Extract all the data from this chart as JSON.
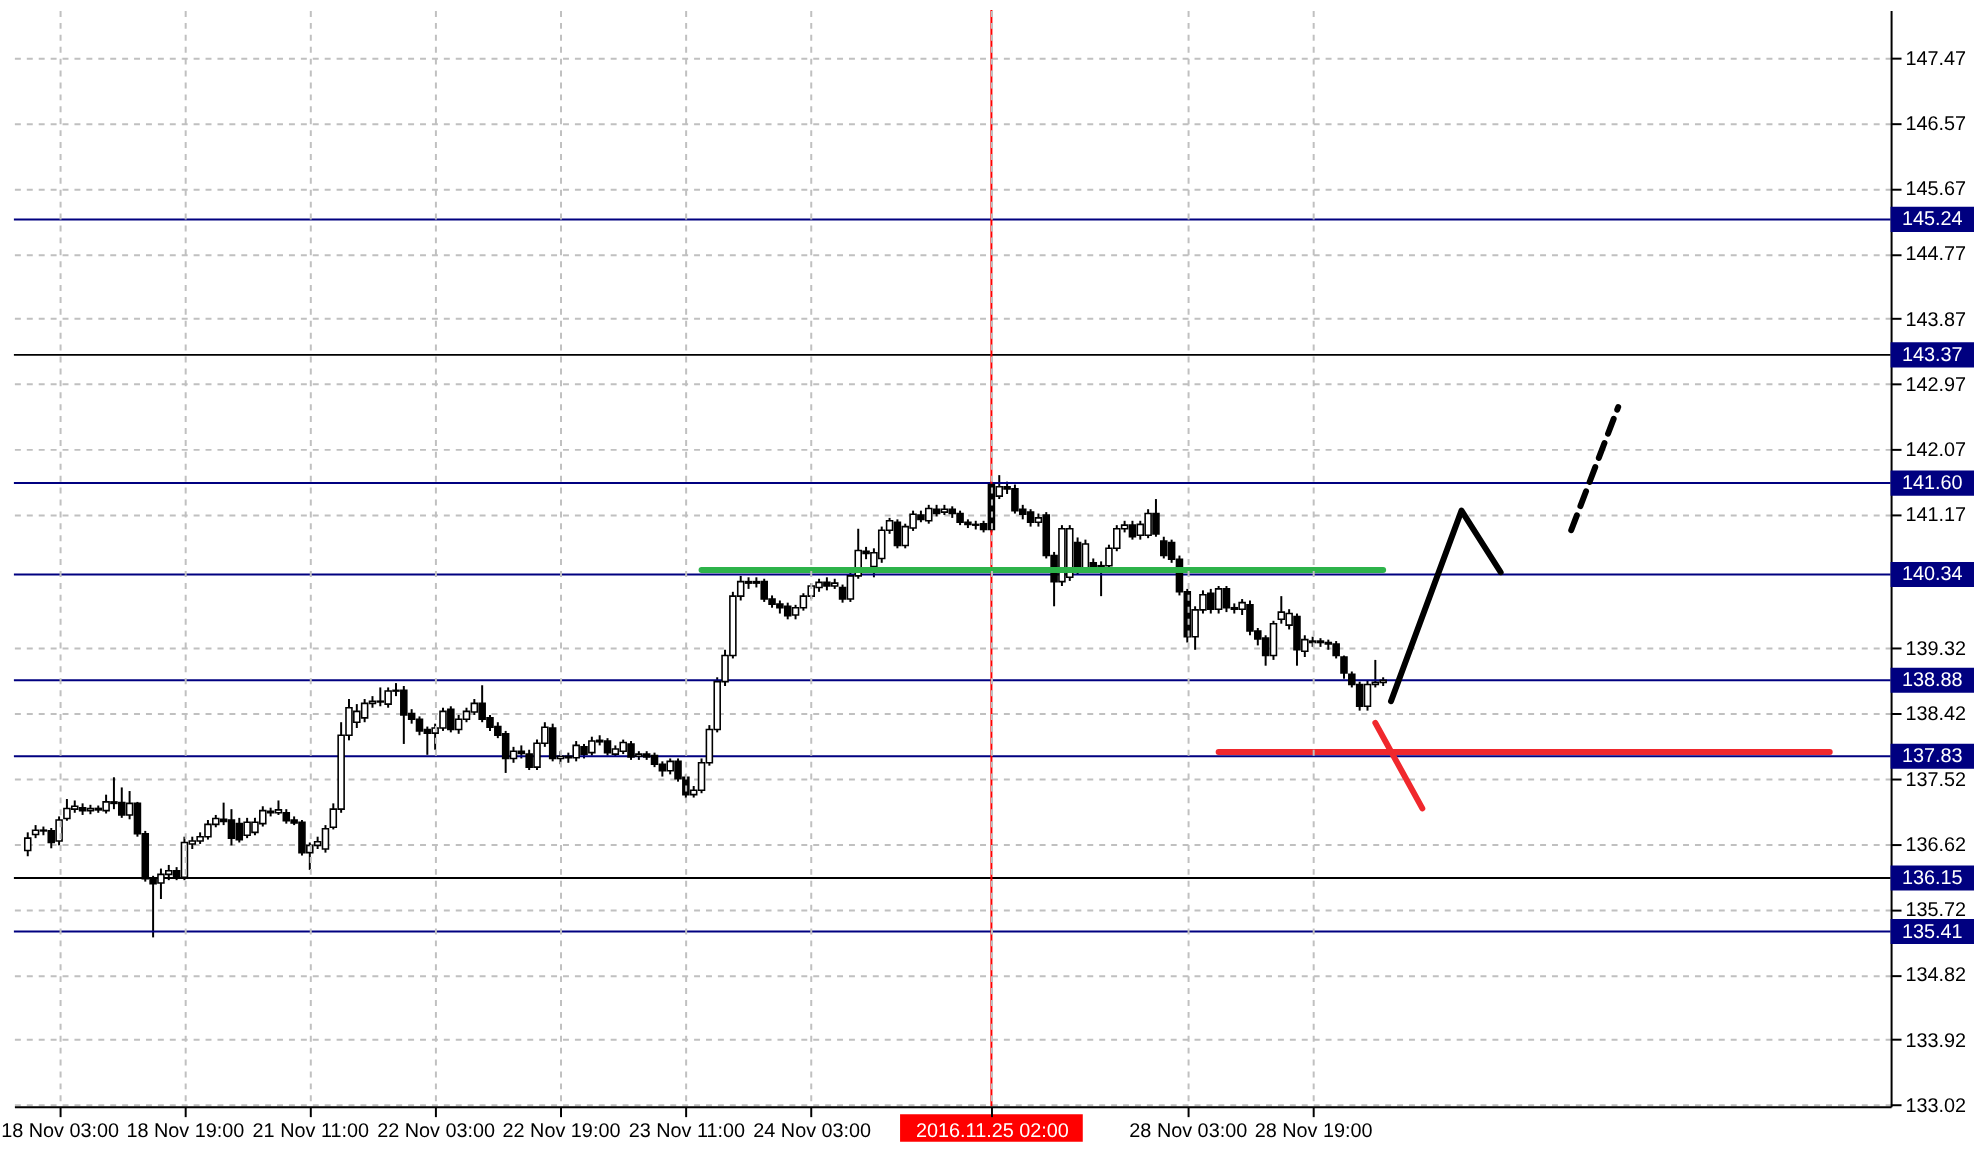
{
  "chart_data": {
    "type": "candlestick",
    "categories": [
      null,
      null,
      null,
      null,
      "18 Nov 03:00",
      null,
      null,
      null,
      null,
      null,
      null,
      null,
      null,
      null,
      null,
      null,
      null,
      null,
      null,
      null,
      "18 Nov 19:00",
      null,
      null,
      null,
      null,
      null,
      null,
      null,
      null,
      null,
      null,
      null,
      null,
      null,
      null,
      null,
      "21 Nov 11:00",
      null,
      null,
      null,
      null,
      null,
      null,
      null,
      null,
      null,
      null,
      null,
      null,
      null,
      null,
      null,
      "22 Nov 03:00",
      null,
      null,
      null,
      null,
      null,
      null,
      null,
      null,
      null,
      null,
      null,
      null,
      null,
      null,
      null,
      "22 Nov 19:00",
      null,
      null,
      null,
      null,
      null,
      null,
      null,
      null,
      null,
      null,
      null,
      null,
      null,
      null,
      null,
      "23 Nov 11:00",
      null,
      null,
      null,
      null,
      null,
      null,
      null,
      null,
      null,
      null,
      null,
      null,
      null,
      null,
      null,
      "24 Nov 03:00",
      null,
      null,
      null,
      null,
      null,
      null,
      null,
      null,
      null,
      null,
      null,
      null,
      null,
      null,
      null,
      null,
      null,
      null,
      null,
      null,
      null,
      null,
      "2016.11.25 02:00",
      null,
      null,
      null,
      null,
      null,
      null,
      null,
      null,
      null,
      null,
      null,
      null,
      null,
      null,
      null,
      null,
      null,
      null,
      null,
      null,
      null,
      null,
      null,
      null,
      "28 Nov 03:00",
      null,
      null,
      null,
      null,
      null,
      null,
      null,
      null,
      null,
      null,
      null,
      null,
      null,
      null,
      null,
      "28 Nov 19:00",
      null,
      null,
      null,
      null,
      null,
      null,
      null,
      null,
      null,
      null,
      null,
      null,
      null,
      null,
      null,
      null,
      null,
      null,
      null,
      null,
      null,
      null,
      null,
      null,
      null,
      null,
      null,
      null,
      null,
      null,
      null,
      null,
      null,
      null,
      null,
      null,
      null,
      null,
      null,
      null,
      null,
      null,
      null,
      null,
      null,
      null,
      null,
      null,
      null,
      null,
      null,
      null,
      null,
      null,
      null,
      null,
      null,
      null,
      null,
      null,
      null,
      null,
      null,
      null,
      null,
      null,
      null,
      null,
      null,
      null,
      null,
      null
    ],
    "ohlc": [
      [
        136.53,
        136.78,
        136.45,
        136.7
      ],
      [
        136.75,
        136.88,
        136.7,
        136.81
      ],
      [
        136.81,
        136.86,
        136.74,
        136.8
      ],
      [
        136.8,
        136.84,
        136.56,
        136.64
      ],
      [
        136.66,
        137.0,
        136.6,
        136.95
      ],
      [
        136.97,
        137.24,
        136.94,
        137.11
      ],
      [
        137.1,
        137.22,
        137.05,
        137.14
      ],
      [
        137.12,
        137.18,
        137.02,
        137.08
      ],
      [
        137.08,
        137.16,
        137.03,
        137.11
      ],
      [
        137.11,
        137.15,
        137.05,
        137.09
      ],
      [
        137.08,
        137.3,
        137.04,
        137.2
      ],
      [
        137.2,
        137.54,
        137.1,
        137.18
      ],
      [
        137.19,
        137.4,
        136.98,
        137.02
      ],
      [
        137.02,
        137.35,
        136.96,
        137.18
      ],
      [
        137.18,
        137.2,
        136.72,
        136.76
      ],
      [
        136.76,
        136.8,
        136.1,
        136.14
      ],
      [
        136.14,
        136.18,
        135.33,
        136.07
      ],
      [
        136.08,
        136.28,
        135.86,
        136.2
      ],
      [
        136.2,
        136.33,
        136.12,
        136.25
      ],
      [
        136.25,
        136.3,
        136.12,
        136.16
      ],
      [
        136.16,
        136.72,
        136.12,
        136.64
      ],
      [
        136.62,
        136.72,
        136.55,
        136.66
      ],
      [
        136.66,
        136.78,
        136.62,
        136.72
      ],
      [
        136.72,
        136.95,
        136.68,
        136.89
      ],
      [
        136.89,
        137.02,
        136.85,
        136.97
      ],
      [
        136.96,
        137.19,
        136.88,
        136.93
      ],
      [
        136.95,
        137.1,
        136.6,
        136.7
      ],
      [
        136.9,
        136.98,
        136.64,
        136.68
      ],
      [
        136.74,
        136.98,
        136.7,
        136.92
      ],
      [
        136.78,
        136.98,
        136.74,
        136.92
      ],
      [
        136.9,
        137.14,
        136.86,
        137.08
      ],
      [
        137.07,
        137.12,
        137.0,
        137.05
      ],
      [
        137.05,
        137.22,
        137.02,
        137.09
      ],
      [
        137.05,
        137.1,
        136.9,
        136.94
      ],
      [
        136.95,
        137.0,
        136.88,
        136.91
      ],
      [
        136.92,
        136.95,
        136.46,
        136.5
      ],
      [
        136.5,
        136.64,
        136.26,
        136.6
      ],
      [
        136.6,
        136.72,
        136.55,
        136.65
      ],
      [
        136.55,
        136.88,
        136.5,
        136.83
      ],
      [
        136.85,
        137.18,
        136.82,
        137.1
      ],
      [
        137.1,
        138.3,
        137.05,
        138.12
      ],
      [
        138.12,
        138.62,
        138.05,
        138.5
      ],
      [
        138.3,
        138.55,
        138.22,
        138.45
      ],
      [
        138.36,
        138.62,
        138.3,
        138.56
      ],
      [
        138.56,
        138.66,
        138.5,
        138.59
      ],
      [
        138.59,
        138.78,
        138.52,
        138.58
      ],
      [
        138.55,
        138.78,
        138.5,
        138.73
      ],
      [
        138.73,
        138.84,
        138.66,
        138.74
      ],
      [
        138.74,
        138.8,
        138.0,
        138.4
      ],
      [
        138.42,
        138.48,
        138.28,
        138.34
      ],
      [
        138.34,
        138.38,
        138.12,
        138.18
      ],
      [
        138.2,
        138.24,
        137.85,
        138.15
      ],
      [
        138.15,
        138.28,
        137.92,
        138.22
      ],
      [
        138.22,
        138.5,
        138.18,
        138.45
      ],
      [
        138.48,
        138.52,
        138.16,
        138.2
      ],
      [
        138.2,
        138.4,
        138.14,
        138.34
      ],
      [
        138.34,
        138.5,
        138.3,
        138.45
      ],
      [
        138.44,
        138.62,
        138.4,
        138.56
      ],
      [
        138.56,
        138.81,
        138.3,
        138.34
      ],
      [
        138.36,
        138.4,
        138.18,
        138.23
      ],
      [
        138.24,
        138.3,
        138.08,
        138.12
      ],
      [
        138.14,
        138.18,
        137.6,
        137.8
      ],
      [
        137.8,
        137.96,
        137.74,
        137.9
      ],
      [
        137.9,
        137.98,
        137.8,
        137.87
      ],
      [
        137.86,
        137.92,
        137.64,
        137.68
      ],
      [
        137.68,
        138.06,
        137.64,
        138.01
      ],
      [
        138.01,
        138.3,
        137.96,
        138.23
      ],
      [
        138.22,
        138.28,
        137.76,
        137.8
      ],
      [
        137.8,
        137.9,
        137.72,
        137.83
      ],
      [
        137.83,
        137.88,
        137.74,
        137.81
      ],
      [
        137.81,
        138.04,
        137.76,
        137.98
      ],
      [
        137.96,
        138.0,
        137.8,
        137.86
      ],
      [
        137.88,
        138.1,
        137.84,
        138.04
      ],
      [
        138.03,
        138.12,
        137.98,
        138.05
      ],
      [
        138.04,
        138.08,
        137.84,
        137.88
      ],
      [
        137.86,
        137.98,
        137.82,
        137.93
      ],
      [
        137.9,
        138.06,
        137.86,
        138.02
      ],
      [
        138.0,
        138.04,
        137.78,
        137.82
      ],
      [
        137.83,
        137.9,
        137.78,
        137.86
      ],
      [
        137.86,
        137.9,
        137.78,
        137.82
      ],
      [
        137.84,
        137.88,
        137.68,
        137.72
      ],
      [
        137.72,
        137.76,
        137.55,
        137.63
      ],
      [
        137.63,
        137.8,
        137.58,
        137.76
      ],
      [
        137.76,
        137.8,
        137.48,
        137.52
      ],
      [
        137.54,
        137.58,
        137.25,
        137.3
      ],
      [
        137.3,
        137.42,
        137.26,
        137.36
      ],
      [
        137.36,
        137.8,
        137.32,
        137.74
      ],
      [
        137.74,
        138.26,
        137.7,
        138.2
      ],
      [
        138.2,
        138.92,
        138.16,
        138.86
      ],
      [
        138.86,
        139.3,
        138.8,
        139.22
      ],
      [
        139.22,
        140.1,
        139.18,
        140.04
      ],
      [
        140.04,
        140.32,
        139.98,
        140.24
      ],
      [
        140.24,
        140.3,
        140.14,
        140.22
      ],
      [
        140.22,
        140.3,
        140.16,
        140.24
      ],
      [
        140.24,
        140.28,
        139.96,
        140.0
      ],
      [
        140.0,
        140.05,
        139.88,
        139.93
      ],
      [
        139.93,
        139.98,
        139.8,
        139.88
      ],
      [
        139.9,
        139.95,
        139.72,
        139.77
      ],
      [
        139.78,
        139.92,
        139.72,
        139.88
      ],
      [
        139.88,
        140.08,
        139.84,
        140.04
      ],
      [
        140.04,
        140.22,
        140.0,
        140.18
      ],
      [
        140.16,
        140.28,
        140.1,
        140.23
      ],
      [
        140.23,
        140.3,
        140.12,
        140.18
      ],
      [
        140.18,
        140.28,
        140.14,
        140.22
      ],
      [
        140.16,
        140.2,
        139.95,
        140.0
      ],
      [
        140.0,
        140.36,
        139.96,
        140.32
      ],
      [
        140.32,
        140.97,
        140.28,
        140.67
      ],
      [
        140.66,
        140.72,
        140.55,
        140.63
      ],
      [
        140.45,
        140.7,
        140.3,
        140.64
      ],
      [
        140.56,
        141.0,
        140.5,
        140.95
      ],
      [
        140.95,
        141.12,
        140.9,
        141.08
      ],
      [
        141.06,
        141.1,
        140.7,
        140.74
      ],
      [
        140.74,
        141.04,
        140.7,
        141.0
      ],
      [
        140.98,
        141.22,
        140.94,
        141.17
      ],
      [
        141.16,
        141.22,
        141.06,
        141.1
      ],
      [
        141.08,
        141.3,
        141.04,
        141.25
      ],
      [
        141.24,
        141.3,
        141.14,
        141.18
      ],
      [
        141.2,
        141.3,
        141.16,
        141.24
      ],
      [
        141.24,
        141.28,
        141.12,
        141.18
      ],
      [
        141.18,
        141.22,
        141.02,
        141.06
      ],
      [
        141.06,
        141.1,
        140.98,
        141.03
      ],
      [
        141.03,
        141.08,
        140.96,
        141.02
      ],
      [
        141.04,
        141.08,
        140.92,
        140.96
      ],
      [
        141.58,
        141.62,
        140.92,
        140.96
      ],
      [
        141.42,
        141.71,
        141.38,
        141.55
      ],
      [
        141.55,
        141.62,
        141.45,
        141.52
      ],
      [
        141.52,
        141.58,
        141.18,
        141.22
      ],
      [
        141.24,
        141.3,
        141.1,
        141.17
      ],
      [
        141.2,
        141.24,
        141.0,
        141.06
      ],
      [
        141.06,
        141.18,
        141.0,
        141.12
      ],
      [
        141.16,
        141.2,
        140.56,
        140.6
      ],
      [
        140.6,
        140.65,
        139.9,
        140.24
      ],
      [
        140.24,
        141.02,
        140.18,
        140.97
      ],
      [
        140.3,
        141.02,
        140.25,
        140.97
      ],
      [
        140.78,
        140.85,
        140.34,
        140.4
      ],
      [
        140.4,
        140.82,
        140.36,
        140.76
      ],
      [
        140.5,
        140.56,
        140.38,
        140.43
      ],
      [
        140.44,
        140.52,
        140.04,
        140.46
      ],
      [
        140.46,
        140.75,
        140.4,
        140.7
      ],
      [
        140.7,
        141.02,
        140.66,
        140.97
      ],
      [
        140.97,
        141.08,
        140.92,
        141.02
      ],
      [
        141.02,
        141.08,
        140.82,
        140.86
      ],
      [
        140.88,
        141.08,
        140.82,
        141.03
      ],
      [
        140.88,
        141.24,
        140.84,
        141.18
      ],
      [
        141.18,
        141.38,
        140.86,
        140.9
      ],
      [
        140.8,
        140.86,
        140.56,
        140.6
      ],
      [
        140.78,
        140.82,
        140.5,
        140.55
      ],
      [
        140.55,
        140.6,
        140.05,
        140.1
      ],
      [
        140.1,
        140.14,
        139.4,
        139.48
      ],
      [
        139.48,
        139.9,
        139.3,
        139.85
      ],
      [
        139.85,
        140.12,
        139.8,
        140.06
      ],
      [
        140.08,
        140.14,
        139.8,
        139.86
      ],
      [
        139.86,
        140.18,
        139.8,
        140.14
      ],
      [
        140.14,
        140.18,
        139.82,
        139.88
      ],
      [
        139.88,
        139.94,
        139.8,
        139.86
      ],
      [
        139.86,
        140.0,
        139.78,
        139.95
      ],
      [
        139.92,
        139.98,
        139.5,
        139.56
      ],
      [
        139.56,
        139.6,
        139.36,
        139.45
      ],
      [
        139.46,
        139.5,
        139.08,
        139.22
      ],
      [
        139.22,
        139.7,
        139.16,
        139.66
      ],
      [
        139.72,
        140.04,
        139.66,
        139.82
      ],
      [
        139.64,
        139.86,
        139.58,
        139.8
      ],
      [
        139.76,
        139.8,
        139.08,
        139.3
      ],
      [
        139.28,
        139.5,
        139.2,
        139.44
      ],
      [
        139.42,
        139.48,
        139.34,
        139.4
      ],
      [
        139.4,
        139.46,
        139.34,
        139.42
      ],
      [
        139.4,
        139.44,
        139.3,
        139.38
      ],
      [
        139.38,
        139.42,
        139.18,
        139.22
      ],
      [
        139.2,
        139.22,
        138.9,
        138.98
      ],
      [
        138.96,
        139.0,
        138.78,
        138.82
      ],
      [
        138.82,
        138.86,
        138.46,
        138.52
      ],
      [
        138.52,
        138.88,
        138.46,
        138.82
      ],
      [
        138.82,
        139.16,
        138.78,
        138.85
      ],
      [
        138.85,
        138.92,
        138.8,
        138.88
      ],
      null,
      null,
      null,
      null,
      null,
      null,
      null,
      null,
      null,
      null,
      null,
      null,
      null,
      null,
      null,
      null,
      null,
      null,
      null,
      null,
      null,
      null,
      null,
      null,
      null,
      null,
      null,
      null,
      null,
      null,
      null,
      null,
      null,
      null,
      null,
      null,
      null,
      null,
      null,
      null,
      null,
      null,
      null,
      null,
      null,
      null,
      null,
      null,
      null,
      null,
      null,
      null,
      null,
      null,
      null,
      null,
      null,
      null,
      null,
      null,
      null,
      null,
      null
    ],
    "series": [
      {
        "type": "line",
        "color": "#2db34a",
        "line_style": "solid",
        "values": [
          null,
          null,
          null,
          null,
          null,
          null,
          null,
          null,
          null,
          null,
          null,
          null,
          null,
          null,
          null,
          null,
          null,
          null,
          null,
          null,
          null,
          null,
          null,
          null,
          null,
          null,
          null,
          null,
          null,
          null,
          null,
          null,
          null,
          null,
          null,
          null,
          null,
          null,
          null,
          null,
          null,
          null,
          null,
          null,
          null,
          null,
          null,
          null,
          null,
          null,
          null,
          null,
          null,
          null,
          null,
          null,
          null,
          null,
          null,
          null,
          null,
          null,
          null,
          null,
          null,
          null,
          null,
          null,
          null,
          null,
          null,
          null,
          null,
          null,
          null,
          null,
          null,
          null,
          null,
          null,
          null,
          null,
          null,
          null,
          null,
          null,
          140.4,
          null,
          null,
          null,
          null,
          null,
          null,
          null,
          null,
          null,
          null,
          null,
          null,
          null,
          null,
          null,
          null,
          null,
          null,
          null,
          null,
          null,
          null,
          null,
          null,
          null,
          null,
          null,
          null,
          null,
          null,
          null,
          null,
          null,
          null,
          null,
          null,
          null,
          null,
          null,
          null,
          null,
          null,
          null,
          null,
          null,
          null,
          null,
          null,
          null,
          null,
          null,
          null,
          null,
          null,
          null,
          null,
          null,
          null,
          null,
          null,
          null,
          null,
          null,
          null,
          null,
          null,
          null,
          null,
          null,
          null,
          null,
          null,
          null,
          null,
          null,
          null,
          null,
          null,
          null,
          null,
          null,
          null,
          null,
          null,
          null,
          null,
          140.4,
          null,
          null,
          null,
          null,
          null,
          null,
          null,
          null,
          null,
          null,
          null,
          null,
          null,
          null,
          null,
          null,
          null,
          null,
          null,
          null,
          null,
          null,
          null,
          null,
          null,
          null,
          null,
          null,
          null,
          null,
          null,
          null,
          null,
          null,
          null,
          null,
          null,
          null,
          null,
          null,
          null,
          null,
          null,
          null,
          null,
          null,
          null,
          null,
          null,
          null,
          null,
          null,
          null,
          null,
          null,
          null,
          null,
          null,
          null,
          null,
          null,
          null,
          null
        ]
      },
      {
        "type": "line",
        "color": "#f0282d",
        "line_style": "solid",
        "values": [
          null,
          null,
          null,
          null,
          null,
          null,
          null,
          null,
          null,
          null,
          null,
          null,
          null,
          null,
          null,
          null,
          null,
          null,
          null,
          null,
          null,
          null,
          null,
          null,
          null,
          null,
          null,
          null,
          null,
          null,
          null,
          null,
          null,
          null,
          null,
          null,
          null,
          null,
          null,
          null,
          null,
          null,
          null,
          null,
          null,
          null,
          null,
          null,
          null,
          null,
          null,
          null,
          null,
          null,
          null,
          null,
          null,
          null,
          null,
          null,
          null,
          null,
          null,
          null,
          null,
          null,
          null,
          null,
          null,
          null,
          null,
          null,
          null,
          null,
          null,
          null,
          null,
          null,
          null,
          null,
          null,
          null,
          null,
          null,
          null,
          null,
          null,
          null,
          null,
          null,
          null,
          null,
          null,
          null,
          null,
          null,
          null,
          null,
          null,
          null,
          null,
          null,
          null,
          null,
          null,
          null,
          null,
          null,
          null,
          null,
          null,
          null,
          null,
          null,
          null,
          null,
          null,
          null,
          null,
          null,
          null,
          null,
          null,
          null,
          null,
          null,
          null,
          null,
          null,
          null,
          null,
          null,
          null,
          null,
          null,
          null,
          null,
          null,
          null,
          null,
          null,
          null,
          null,
          null,
          null,
          null,
          null,
          null,
          null,
          null,
          null,
          null,
          137.89,
          null,
          null,
          null,
          null,
          null,
          null,
          null,
          null,
          null,
          null,
          null,
          null,
          null,
          null,
          null,
          null,
          null,
          null,
          null,
          null,
          null,
          null,
          null,
          null,
          null,
          null,
          null,
          null,
          null,
          null,
          null,
          null,
          null,
          null,
          null,
          null,
          null,
          null,
          null,
          null,
          null,
          null,
          null,
          null,
          null,
          null,
          null,
          null,
          null,
          null,
          null,
          null,
          null,
          null,
          null,
          null,
          null,
          null,
          null,
          null,
          null,
          null,
          null,
          null,
          null,
          null,
          null,
          null,
          null,
          null,
          null,
          null,
          null,
          null,
          null,
          null,
          null,
          137.89,
          null,
          null,
          null,
          null,
          null,
          null
        ]
      },
      {
        "type": "line",
        "color": "#f0282d",
        "line_style": "solid",
        "values": [
          null,
          null,
          null,
          null,
          null,
          null,
          null,
          null,
          null,
          null,
          null,
          null,
          null,
          null,
          null,
          null,
          null,
          null,
          null,
          null,
          null,
          null,
          null,
          null,
          null,
          null,
          null,
          null,
          null,
          null,
          null,
          null,
          null,
          null,
          null,
          null,
          null,
          null,
          null,
          null,
          null,
          null,
          null,
          null,
          null,
          null,
          null,
          null,
          null,
          null,
          null,
          null,
          null,
          null,
          null,
          null,
          null,
          null,
          null,
          null,
          null,
          null,
          null,
          null,
          null,
          null,
          null,
          null,
          null,
          null,
          null,
          null,
          null,
          null,
          null,
          null,
          null,
          null,
          null,
          null,
          null,
          null,
          null,
          null,
          null,
          null,
          null,
          null,
          null,
          null,
          null,
          null,
          null,
          null,
          null,
          null,
          null,
          null,
          null,
          null,
          null,
          null,
          null,
          null,
          null,
          null,
          null,
          null,
          null,
          null,
          null,
          null,
          null,
          null,
          null,
          null,
          null,
          null,
          null,
          null,
          null,
          null,
          null,
          null,
          null,
          null,
          null,
          null,
          null,
          null,
          null,
          null,
          null,
          null,
          null,
          null,
          null,
          null,
          null,
          null,
          null,
          null,
          null,
          null,
          null,
          null,
          null,
          null,
          null,
          null,
          null,
          null,
          null,
          null,
          null,
          null,
          null,
          null,
          null,
          null,
          null,
          null,
          null,
          null,
          null,
          null,
          null,
          null,
          null,
          null,
          null,
          null,
          138.29,
          null,
          null,
          null,
          null,
          null,
          137.11,
          null,
          null,
          null,
          null,
          null,
          null,
          null,
          null,
          null,
          null,
          null,
          null,
          null,
          null,
          null,
          null,
          null,
          null,
          null,
          null,
          null,
          null,
          null,
          null,
          null,
          null,
          null,
          null,
          null,
          null,
          null,
          null,
          null,
          null,
          null,
          null,
          null,
          null,
          null,
          null,
          null,
          null,
          null,
          null,
          null,
          null,
          null,
          null,
          null,
          null,
          null,
          null,
          null,
          null,
          null,
          null,
          null,
          null
        ]
      },
      {
        "type": "line",
        "color": "#000000",
        "line_style": "solid",
        "values": [
          null,
          null,
          null,
          null,
          null,
          null,
          null,
          null,
          null,
          null,
          null,
          null,
          null,
          null,
          null,
          null,
          null,
          null,
          null,
          null,
          null,
          null,
          null,
          null,
          null,
          null,
          null,
          null,
          null,
          null,
          null,
          null,
          null,
          null,
          null,
          null,
          null,
          null,
          null,
          null,
          null,
          null,
          null,
          null,
          null,
          null,
          null,
          null,
          null,
          null,
          null,
          null,
          null,
          null,
          null,
          null,
          null,
          null,
          null,
          null,
          null,
          null,
          null,
          null,
          null,
          null,
          null,
          null,
          null,
          null,
          null,
          null,
          null,
          null,
          null,
          null,
          null,
          null,
          null,
          null,
          null,
          null,
          null,
          null,
          null,
          null,
          null,
          null,
          null,
          null,
          null,
          null,
          null,
          null,
          null,
          null,
          null,
          null,
          null,
          null,
          null,
          null,
          null,
          null,
          null,
          null,
          null,
          null,
          null,
          null,
          null,
          null,
          null,
          null,
          null,
          null,
          null,
          null,
          null,
          null,
          null,
          null,
          null,
          null,
          null,
          null,
          null,
          null,
          null,
          null,
          null,
          null,
          null,
          null,
          null,
          null,
          null,
          null,
          null,
          null,
          null,
          null,
          null,
          null,
          null,
          null,
          null,
          null,
          null,
          null,
          null,
          null,
          null,
          null,
          null,
          null,
          null,
          null,
          null,
          null,
          null,
          null,
          null,
          null,
          null,
          null,
          null,
          null,
          null,
          null,
          null,
          null,
          null,
          null,
          138.59,
          null,
          null,
          null,
          null,
          null,
          null,
          null,
          null,
          141.22,
          null,
          null,
          null,
          null,
          140.37,
          null,
          null,
          null,
          null,
          null,
          null,
          null,
          null,
          null,
          null,
          null,
          null,
          null,
          null,
          null,
          null,
          null,
          null,
          null,
          null,
          null,
          null,
          null,
          null,
          null,
          null,
          null,
          null,
          null,
          null,
          null,
          null,
          null,
          null,
          null,
          null,
          null,
          null,
          null,
          null,
          null,
          null,
          null,
          null,
          null,
          null,
          null,
          null
        ]
      },
      {
        "type": "line",
        "color": "#000000",
        "line_style": "dashed",
        "values": [
          null,
          null,
          null,
          null,
          null,
          null,
          null,
          null,
          null,
          null,
          null,
          null,
          null,
          null,
          null,
          null,
          null,
          null,
          null,
          null,
          null,
          null,
          null,
          null,
          null,
          null,
          null,
          null,
          null,
          null,
          null,
          null,
          null,
          null,
          null,
          null,
          null,
          null,
          null,
          null,
          null,
          null,
          null,
          null,
          null,
          null,
          null,
          null,
          null,
          null,
          null,
          null,
          null,
          null,
          null,
          null,
          null,
          null,
          null,
          null,
          null,
          null,
          null,
          null,
          null,
          null,
          null,
          null,
          null,
          null,
          null,
          null,
          null,
          null,
          null,
          null,
          null,
          null,
          null,
          null,
          null,
          null,
          null,
          null,
          null,
          null,
          null,
          null,
          null,
          null,
          null,
          null,
          null,
          null,
          null,
          null,
          null,
          null,
          null,
          null,
          null,
          null,
          null,
          null,
          null,
          null,
          null,
          null,
          null,
          null,
          null,
          null,
          null,
          null,
          null,
          null,
          null,
          null,
          null,
          null,
          null,
          null,
          null,
          null,
          null,
          null,
          null,
          null,
          null,
          null,
          null,
          null,
          null,
          null,
          null,
          null,
          null,
          null,
          null,
          null,
          null,
          null,
          null,
          null,
          null,
          null,
          null,
          null,
          null,
          null,
          null,
          null,
          null,
          null,
          null,
          null,
          null,
          null,
          null,
          null,
          null,
          null,
          null,
          null,
          null,
          null,
          null,
          null,
          null,
          null,
          null,
          null,
          null,
          null,
          null,
          null,
          null,
          null,
          null,
          null,
          null,
          null,
          null,
          null,
          null,
          null,
          null,
          null,
          null,
          null,
          null,
          null,
          null,
          null,
          null,
          null,
          null,
          140.95,
          null,
          null,
          null,
          null,
          null,
          142.65,
          null,
          null,
          null,
          null,
          null,
          null,
          null,
          null,
          null,
          null,
          null,
          null,
          null,
          null,
          null,
          null,
          null,
          null,
          null,
          null,
          null,
          null,
          null,
          null,
          null,
          null,
          null,
          null,
          null,
          null,
          null,
          null,
          null
        ]
      }
    ],
    "ref_lines": [
      {
        "axis": "y",
        "value": 145.24,
        "label": "145.24",
        "color": "#000080"
      },
      {
        "axis": "y",
        "value": 143.37,
        "label": "143.37",
        "color": "#000000"
      },
      {
        "axis": "y",
        "value": 141.6,
        "label": "141.60",
        "color": "#000080"
      },
      {
        "axis": "y",
        "value": 140.34,
        "label": "140.34",
        "color": "#000080"
      },
      {
        "axis": "y",
        "value": 138.88,
        "label": "138.88",
        "color": "#000080"
      },
      {
        "axis": "y",
        "value": 137.83,
        "label": "137.83",
        "color": "#000080"
      },
      {
        "axis": "y",
        "value": 136.15,
        "label": "136.15",
        "color": "#000000"
      },
      {
        "axis": "y",
        "value": 135.41,
        "label": "135.41",
        "color": "#000080"
      },
      {
        "axis": "x",
        "value": "2016.11.25 02:00",
        "color": "#ff0000"
      }
    ],
    "ylim": [
      133.0,
      148.13
    ],
    "yticks": [
      133.02,
      133.92,
      134.82,
      135.72,
      136.62,
      137.52,
      138.42,
      139.32,
      141.17,
      142.07,
      142.97,
      143.87,
      144.77,
      145.67,
      146.57,
      147.47
    ],
    "grid": true
  }
}
